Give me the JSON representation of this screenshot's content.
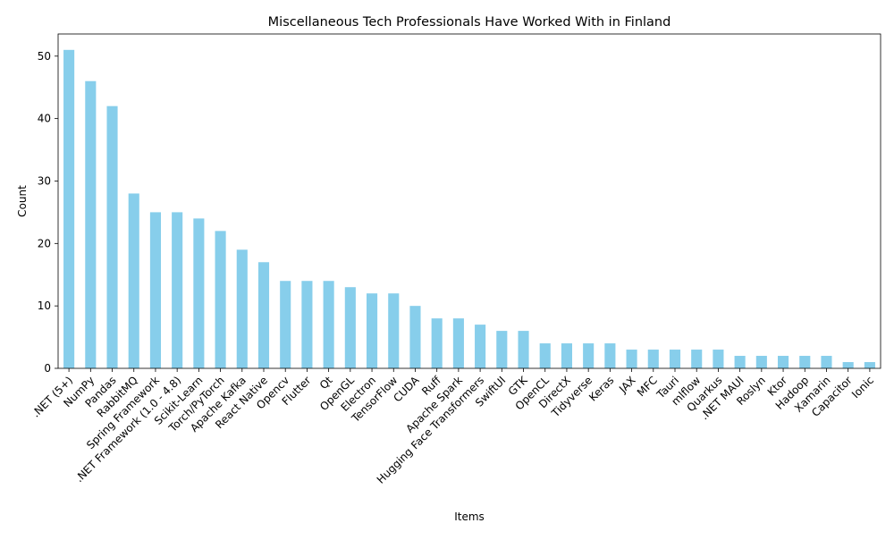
{
  "chart_data": {
    "type": "bar",
    "title": "Miscellaneous Tech Professionals Have Worked With in Finland",
    "xlabel": "Items",
    "ylabel": "Count",
    "ylim": [
      0,
      53.55
    ],
    "yticks": [
      0,
      10,
      20,
      30,
      40,
      50
    ],
    "grid": false,
    "bar_color": "#87ceeb",
    "categories": [
      ".NET (5+)",
      "NumPy",
      "Pandas",
      "RabbitMQ",
      "Spring Framework",
      ".NET Framework (1.0 - 4.8)",
      "Scikit-Learn",
      "Torch/PyTorch",
      "Apache Kafka",
      "React Native",
      "Opencv",
      "Flutter",
      "Qt",
      "OpenGL",
      "Electron",
      "TensorFlow",
      "CUDA",
      "Ruff",
      "Apache Spark",
      "Hugging Face Transformers",
      "SwiftUI",
      "GTK",
      "OpenCL",
      "DirectX",
      "Tidyverse",
      "Keras",
      "JAX",
      "MFC",
      "Tauri",
      "mlflow",
      "Quarkus",
      ".NET MAUI",
      "Roslyn",
      "Ktor",
      "Hadoop",
      "Xamarin",
      "Capacitor",
      "Ionic"
    ],
    "values": [
      51,
      46,
      42,
      28,
      25,
      25,
      24,
      22,
      19,
      17,
      14,
      14,
      14,
      13,
      12,
      12,
      10,
      8,
      8,
      7,
      6,
      6,
      4,
      4,
      4,
      4,
      3,
      3,
      3,
      3,
      3,
      2,
      2,
      2,
      2,
      2,
      1,
      1
    ]
  }
}
